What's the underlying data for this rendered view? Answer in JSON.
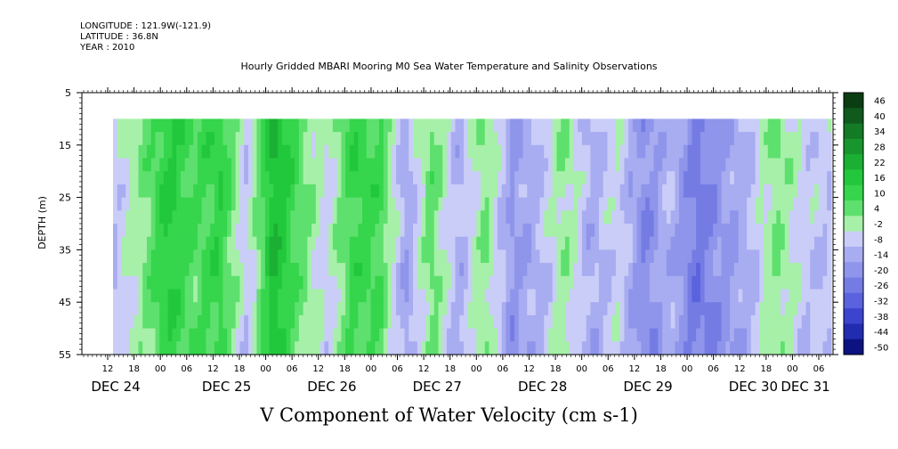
{
  "header": {
    "longitude": "LONGITUDE : 121.9W(-121.9)",
    "latitude": "LATITUDE : 36.8N",
    "year": "YEAR : 2010"
  },
  "chart_data": {
    "type": "heatmap",
    "title": "Hourly Gridded MBARI Mooring M0 Sea Water Temperature and Salinity Observations",
    "xlabel": "V Component of Water Velocity (cm s-1)",
    "ylabel": "DEPTH (m)",
    "ylim": [
      55,
      5
    ],
    "y_ticks": [
      5,
      15,
      25,
      35,
      45,
      55
    ],
    "hour_ticks": [
      "12",
      "18",
      "00",
      "06",
      "12",
      "18",
      "00",
      "06",
      "12",
      "18",
      "00",
      "06",
      "12",
      "18",
      "00",
      "06",
      "12",
      "18",
      "00",
      "06",
      "12",
      "18",
      "00",
      "06",
      "12",
      "18",
      "00",
      "06"
    ],
    "day_labels": [
      "DEC 24",
      "DEC 25",
      "DEC 26",
      "DEC 27",
      "DEC 28",
      "DEC 29",
      "DEC 30",
      "DEC 31"
    ],
    "time_range_hours": [
      "DEC 24 12",
      "DEC 31 06"
    ],
    "depth_range_data": [
      10,
      55
    ],
    "colorbar": {
      "ticks": [
        46,
        40,
        34,
        28,
        22,
        16,
        10,
        4,
        -2,
        -8,
        -14,
        -20,
        -26,
        -32,
        -38,
        -44,
        -50
      ],
      "colors": [
        "#0a3d12",
        "#0f5a1c",
        "#137a25",
        "#18962d",
        "#1bb034",
        "#22c83c",
        "#35d54c",
        "#5ee06e",
        "#a7f0a9",
        "#c9cdf7",
        "#a8acf0",
        "#8e95ea",
        "#747ce4",
        "#5a62de",
        "#3c44cf",
        "#222cb0",
        "#0c1280"
      ]
    },
    "v_velocity_profile": [
      {
        "time": "DEC 24 12",
        "v": -6
      },
      {
        "time": "DEC 24 18",
        "v": 4
      },
      {
        "time": "DEC 25 00",
        "v": 18
      },
      {
        "time": "DEC 25 06",
        "v": 10
      },
      {
        "time": "DEC 25 12",
        "v": 16
      },
      {
        "time": "DEC 25 18",
        "v": -6
      },
      {
        "time": "DEC 26 00",
        "v": 24
      },
      {
        "time": "DEC 26 06",
        "v": 8
      },
      {
        "time": "DEC 26 12",
        "v": -4
      },
      {
        "time": "DEC 26 18",
        "v": 14
      },
      {
        "time": "DEC 27 00",
        "v": 12
      },
      {
        "time": "DEC 27 06",
        "v": -12
      },
      {
        "time": "DEC 27 12",
        "v": 8
      },
      {
        "time": "DEC 27 18",
        "v": -10
      },
      {
        "time": "DEC 28 00",
        "v": 6
      },
      {
        "time": "DEC 28 06",
        "v": -14
      },
      {
        "time": "DEC 28 12",
        "v": -8
      },
      {
        "time": "DEC 28 18",
        "v": 4
      },
      {
        "time": "DEC 29 00",
        "v": -10
      },
      {
        "time": "DEC 29 06",
        "v": -2
      },
      {
        "time": "DEC 29 12",
        "v": -18
      },
      {
        "time": "DEC 29 18",
        "v": -8
      },
      {
        "time": "DEC 30 00",
        "v": -22
      },
      {
        "time": "DEC 30 06",
        "v": -14
      },
      {
        "time": "DEC 30 12",
        "v": -8
      },
      {
        "time": "DEC 30 18",
        "v": 6
      },
      {
        "time": "DEC 31 00",
        "v": -4
      },
      {
        "time": "DEC 31 06",
        "v": -6
      }
    ]
  }
}
